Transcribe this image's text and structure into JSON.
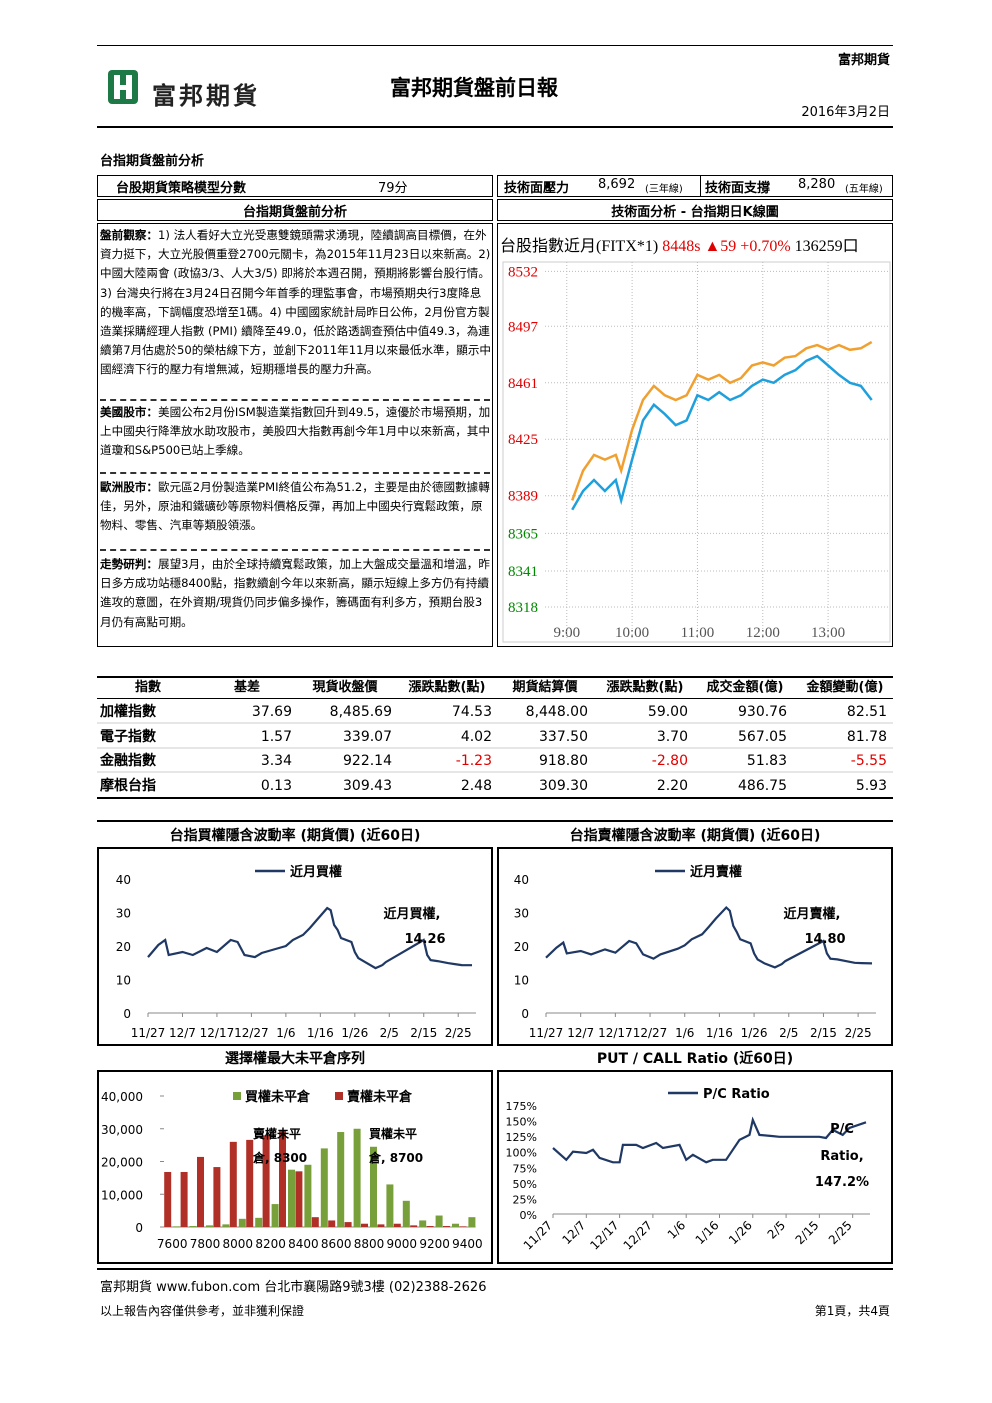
{
  "header": {
    "company": "富邦期貨",
    "logo_text": "富邦期貨",
    "title": "富邦期貨盤前日報",
    "date": "2016年3月2日"
  },
  "section_title": "台指期貨盤前分析",
  "score_row": {
    "model_label": "台股期貨策略模型分數",
    "model_score": "79分",
    "resistance_label": "技術面壓力",
    "resistance_value": "8,692",
    "resistance_note": "(三年線)",
    "support_label": "技術面支撐",
    "support_value": "8,280",
    "support_note": "(五年線)"
  },
  "analysis": {
    "heading": "台指期貨盤前分析",
    "paragraphs": [
      {
        "label": "盤前觀察：",
        "text": "1) 法人看好大立光受惠雙鏡頭需求湧現，陸續調高目標價，在外資力挺下，大立光股價重登2700元關卡，為2015年11月23日以來新高。2) 中國大陸兩會 (政協3/3、人大3/5) 即將於本週召開，預期將影響台股行情。3) 台灣央行將在3月24日召開今年首季的理監事會，市場預期央行3度降息的機率高，下調幅度恐增至1碼。4) 中國國家統計局昨日公佈，2月份官方製造業採購經理人指數 (PMI) 續降至49.0，低於路透調查預估中值49.3，為連續第7月估處於50的榮枯線下方，並創下2011年11月以來最低水準，顯示中國經濟下行的壓力有增無減，短期穩增長的壓力升高。"
      },
      {
        "label": "美國股市：",
        "text": "美國公布2月份ISM製造業指數回升到49.5，遠優於市場預期，加上中國央行降準放水助攻股市，美股四大指數再創今年1月中以來新高，其中道瓊和S&P500已站上季線。"
      },
      {
        "label": "歐洲股市：",
        "text": "歐元區2月份製造業PMI終值公布為51.2，主要是由於德國數據轉佳，另外，原油和鐵礦砂等原物料價格反彈，再加上中國央行寬鬆政策，原物料、零售、汽車等類股領漲。"
      },
      {
        "label": "走勢研判：",
        "text": "展望3月，由於全球持續寬鬆政策，加上大盤成交量溫和增溫，昨日多方成功站穩8400點，指數續創今年以來新高，顯示短線上多方仍有持續進攻的意圖，在外資期/現貨仍同步偏多操作，籌碼面有利多方，預期台股3月仍有高點可期。"
      }
    ]
  },
  "table": {
    "headers": [
      "指數",
      "基差",
      "現貨收盤價",
      "漲跌點數(點)",
      "期貨結算價",
      "漲跌點數(點)",
      "成交金額(億)",
      "金額變動(億)"
    ],
    "rows": [
      [
        "加權指數",
        "37.69",
        "8,485.69",
        "74.53",
        "8,448.00",
        "59.00",
        "930.76",
        "82.51"
      ],
      [
        "電子指數",
        "1.57",
        "339.07",
        "4.02",
        "337.50",
        "3.70",
        "567.05",
        "81.78"
      ],
      [
        "金融指數",
        "3.34",
        "922.14",
        "-1.23",
        "918.80",
        "-2.80",
        "51.83",
        "-5.55"
      ],
      [
        "摩根台指",
        "0.13",
        "309.43",
        "2.48",
        "309.30",
        "2.20",
        "486.75",
        "5.93"
      ]
    ]
  },
  "footer": {
    "contact": "富邦期貨 www.fubon.com 台北市襄陽路9號3樓 (02)2388-2626",
    "disclaimer": "以上報告內容僅供參考，並非獲利保證",
    "page": "第1頁，共4頁"
  },
  "chart_data": [
    {
      "type": "line",
      "title": "技術面分析 - 台指期日K線圖",
      "subtitle": "台股指數近月(FITX*1)",
      "quote": [
        "8448s",
        "▲59",
        "+0.70%"
      ],
      "volume_text": "136259口",
      "x": [
        "9:05",
        "9:15",
        "9:25",
        "9:35",
        "9:45",
        "9:50",
        "10:00",
        "10:10",
        "10:20",
        "10:30",
        "10:40",
        "10:50",
        "11:00",
        "11:10",
        "11:20",
        "11:30",
        "11:40",
        "11:50",
        "12:00",
        "12:10",
        "12:20",
        "12:30",
        "12:40",
        "12:50",
        "13:00",
        "13:10",
        "13:20",
        "13:30",
        "13:40"
      ],
      "series": [
        {
          "color": "#f0a030",
          "values": [
            8386,
            8405,
            8415,
            8412,
            8415,
            8405,
            8431,
            8450,
            8459,
            8453,
            8450,
            8453,
            8466,
            8463,
            8466,
            8461,
            8464,
            8472,
            8474,
            8472,
            8477,
            8478,
            8483,
            8485,
            8482,
            8485,
            8482,
            8483,
            8487
          ]
        },
        {
          "color": "#1fa0dc",
          "values": [
            8380,
            8392,
            8399,
            8392,
            8399,
            8386,
            8412,
            8437,
            8447,
            8441,
            8434,
            8437,
            8453,
            8450,
            8455,
            8450,
            8453,
            8459,
            8463,
            8461,
            8466,
            8469,
            8475,
            8478,
            8472,
            8466,
            8461,
            8459,
            8450
          ]
        }
      ],
      "xlim": [
        "8:40",
        "13:55"
      ],
      "xticks": [
        "9:00",
        "10:00",
        "11:00",
        "12:00",
        "13:00"
      ],
      "ylim": [
        8297,
        8538
      ],
      "yticks": [
        8532,
        8497,
        8461,
        8425,
        8389,
        8365,
        8341,
        8318
      ],
      "ytick_colors": [
        "#e00000",
        "#e00000",
        "#e00000",
        "#e00000",
        "#e00000",
        "#008800",
        "#008800",
        "#008800"
      ],
      "grid": true
    },
    {
      "type": "line",
      "title": "台指買權隱含波動率 (期貨價) (近60日)",
      "x": [
        "11/27",
        "11/30",
        "12/2",
        "12/3",
        "12/7",
        "12/10",
        "12/14",
        "12/17",
        "12/21",
        "12/23",
        "12/25",
        "12/28",
        "12/30",
        "1/4",
        "1/6",
        "1/8",
        "1/11",
        "1/13",
        "1/15",
        "1/18",
        "1/19",
        "1/20",
        "1/21",
        "1/22",
        "1/25",
        "1/26",
        "1/27",
        "1/29",
        "2/1",
        "2/3",
        "2/4",
        "2/15",
        "2/16",
        "2/17",
        "2/19",
        "2/22",
        "2/24",
        "2/26",
        "2/29"
      ],
      "series": [
        {
          "name": "近月買權",
          "color": "#1f3864",
          "values": [
            16.7,
            20.3,
            21.8,
            17.3,
            18.2,
            17.3,
            19.4,
            18.2,
            21.8,
            21.2,
            17.3,
            16.7,
            17.9,
            19.4,
            20,
            21.8,
            23.3,
            25.4,
            27.8,
            31.3,
            30.7,
            26.3,
            24.8,
            22.4,
            21.2,
            18.2,
            16.4,
            15.2,
            13.4,
            14.3,
            15.2,
            21.8,
            17.3,
            15.8,
            15.5,
            14.9,
            14.6,
            14.3,
            14.26
          ]
        }
      ],
      "annotation": [
        "近月買權,",
        "14.26"
      ],
      "xlim": [
        "11/27",
        "2/29"
      ],
      "xticks": [
        "11/27",
        "12/7",
        "12/17",
        "12/27",
        "1/6",
        "1/16",
        "1/26",
        "2/5",
        "2/15",
        "2/25"
      ],
      "ylim": [
        0,
        40
      ],
      "yticks": [
        0,
        10,
        20,
        30,
        40
      ]
    },
    {
      "type": "line",
      "title": "台指賣權隱含波動率 (期貨價) (近60日)",
      "x": [
        "11/27",
        "11/30",
        "12/2",
        "12/3",
        "12/7",
        "12/10",
        "12/14",
        "12/17",
        "12/21",
        "12/23",
        "12/25",
        "12/28",
        "12/30",
        "1/4",
        "1/6",
        "1/8",
        "1/11",
        "1/13",
        "1/15",
        "1/18",
        "1/19",
        "1/20",
        "1/21",
        "1/22",
        "1/25",
        "1/26",
        "1/27",
        "1/29",
        "2/1",
        "2/3",
        "2/4",
        "2/15",
        "2/16",
        "2/17",
        "2/19",
        "2/22",
        "2/24",
        "2/26",
        "2/29"
      ],
      "series": [
        {
          "name": "近月賣權",
          "color": "#1f3864",
          "values": [
            16.5,
            19.5,
            21.0,
            17.8,
            18.5,
            17.5,
            19.0,
            18.0,
            21.5,
            20.8,
            17.5,
            16.2,
            17.5,
            19.2,
            20.2,
            22.0,
            23.5,
            25.8,
            28.2,
            31.5,
            30.5,
            26.0,
            24.2,
            22.0,
            20.8,
            17.8,
            16.0,
            14.8,
            13.6,
            14.6,
            15.5,
            21.5,
            17.8,
            16.2,
            16.0,
            15.4,
            15.0,
            14.9,
            14.8
          ]
        }
      ],
      "annotation": [
        "近月賣權,",
        "14.80"
      ],
      "xlim": [
        "11/27",
        "2/29"
      ],
      "xticks": [
        "11/27",
        "12/7",
        "12/17",
        "12/27",
        "1/6",
        "1/16",
        "1/26",
        "2/5",
        "2/15",
        "2/25"
      ],
      "ylim": [
        0,
        40
      ],
      "yticks": [
        0,
        10,
        20,
        30,
        40
      ]
    },
    {
      "type": "bar",
      "title": "選擇權最大未平倉序列",
      "categories": [
        7600,
        null,
        7800,
        null,
        8000,
        null,
        8200,
        null,
        8400,
        null,
        8600,
        null,
        8800,
        null,
        9000,
        null,
        9200,
        null,
        9400
      ],
      "series": [
        {
          "name": "買權未平倉",
          "color": "#77a03a",
          "values": [
            200,
            300,
            500,
            800,
            2500,
            2800,
            7000,
            17500,
            19000,
            24000,
            29000,
            30000,
            24500,
            13000,
            8000,
            2000,
            3500,
            1000,
            3000
          ]
        },
        {
          "name": "賣權未平倉",
          "color": "#b03028",
          "values": [
            16800,
            16800,
            21400,
            18300,
            26000,
            26600,
            28000,
            29500,
            17000,
            3000,
            2000,
            1500,
            1000,
            800,
            1000,
            500,
            300,
            300,
            200
          ]
        }
      ],
      "annotations": [
        [
          "賣權未平",
          "倉, 8300"
        ],
        [
          "買權未平",
          "倉, 8700"
        ]
      ],
      "ylim": [
        0,
        40000
      ],
      "yticks": [
        0,
        {
          "value": 10000,
          "label": "10,000"
        },
        {
          "value": 20000,
          "label": "20,000"
        },
        {
          "value": 30000,
          "label": "30,000"
        },
        {
          "value": 40000,
          "label": "40,000"
        }
      ]
    },
    {
      "type": "line",
      "title": "PUT / CALL Ratio (近60日)",
      "x": [
        "11/27",
        "12/1",
        "12/3",
        "12/7",
        "12/9",
        "12/11",
        "12/15",
        "12/17",
        "12/18",
        "12/22",
        "12/24",
        "12/28",
        "12/30",
        "1/4",
        "1/6",
        "1/8",
        "1/12",
        "1/14",
        "1/18",
        "1/20",
        "1/22",
        "1/25",
        "1/26",
        "1/28",
        "2/1",
        "2/3",
        "2/15",
        "2/17",
        "2/19",
        "2/22",
        "2/24",
        "2/29"
      ],
      "series": [
        {
          "name": "P/C Ratio",
          "color": "#1f3864",
          "values": [
            106,
            87,
            100,
            98,
            103,
            90,
            83,
            83,
            111,
            111,
            106,
            114,
            106,
            111,
            87,
            95,
            83,
            87,
            87,
            103,
            119,
            127,
            151,
            127,
            125,
            124,
            124,
            122,
            135,
            127,
            138,
            147.2
          ]
        }
      ],
      "annotation": [
        "P/C",
        "Ratio,",
        "147.2%"
      ],
      "xlim": [
        "11/27",
        "2/29"
      ],
      "xticks": [
        "11/27",
        "12/7",
        "12/17",
        "12/27",
        "1/6",
        "1/16",
        "1/26",
        "2/5",
        "2/15",
        "2/25"
      ],
      "ylim": [
        0,
        175
      ],
      "yticks": [
        {
          "value": 0,
          "label": "0%"
        },
        {
          "value": 25,
          "label": "25%"
        },
        {
          "value": 50,
          "label": "50%"
        },
        {
          "value": 75,
          "label": "75%"
        },
        {
          "value": 100,
          "label": "100%"
        },
        {
          "value": 125,
          "label": "125%"
        },
        {
          "value": 150,
          "label": "150%"
        },
        {
          "value": 175,
          "label": "175%"
        }
      ]
    }
  ]
}
